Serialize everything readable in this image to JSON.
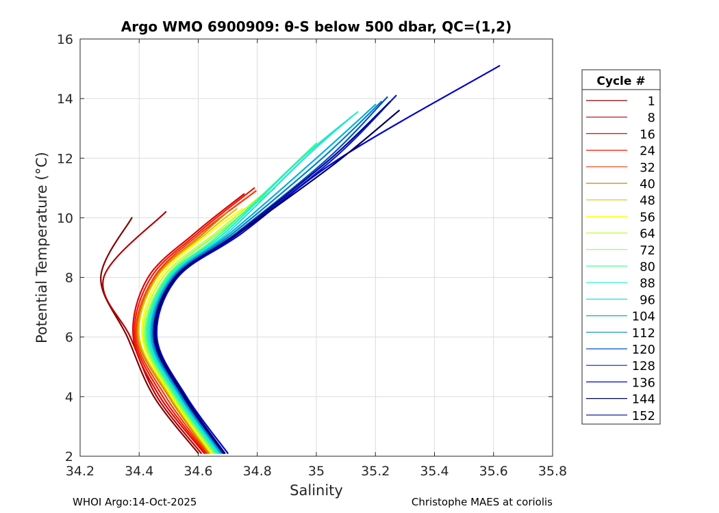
{
  "chart_data": {
    "type": "line",
    "title": "Argo WMO 6900909: θ-S below 500 dbar,  QC=(1,2)",
    "xlabel": "Salinity",
    "ylabel": "Potential Temperature (°C)",
    "xlim": [
      34.2,
      35.8
    ],
    "ylim": [
      2,
      16
    ],
    "xticks": [
      "34.2",
      "34.4",
      "34.6",
      "34.8",
      "35",
      "35.2",
      "35.4",
      "35.6",
      "35.8"
    ],
    "yticks": [
      "2",
      "4",
      "6",
      "8",
      "10",
      "12",
      "14",
      "16"
    ],
    "grid": true,
    "legend": {
      "title": "Cycle #",
      "placement": "outside-right",
      "entries": [
        {
          "label": "1",
          "color": "#800000"
        },
        {
          "label": "8",
          "color": "#b00000"
        },
        {
          "label": "16",
          "color": "#e00000"
        },
        {
          "label": "24",
          "color": "#f51500"
        },
        {
          "label": "32",
          "color": "#f53a00"
        },
        {
          "label": "40",
          "color": "#d08000"
        },
        {
          "label": "48",
          "color": "#e0c000"
        },
        {
          "label": "56",
          "color": "#ffff00"
        },
        {
          "label": "64",
          "color": "#c0ff30"
        },
        {
          "label": "72",
          "color": "#80ff60"
        },
        {
          "label": "80",
          "color": "#40ff90"
        },
        {
          "label": "88",
          "color": "#20f0c0"
        },
        {
          "label": "96",
          "color": "#20e0e0"
        },
        {
          "label": "104",
          "color": "#00b0e0"
        },
        {
          "label": "112",
          "color": "#0080c0"
        },
        {
          "label": "120",
          "color": "#0050c0"
        },
        {
          "label": "128",
          "color": "#0020c0"
        },
        {
          "label": "136",
          "color": "#0000d0"
        },
        {
          "label": "144",
          "color": "#000060"
        },
        {
          "label": "152",
          "color": "#000090"
        }
      ]
    },
    "series": [
      {
        "name": "1",
        "color": "#800000",
        "points": [
          [
            34.375,
            10.0
          ],
          [
            34.27,
            8.0
          ],
          [
            34.36,
            6.0
          ],
          [
            34.45,
            4.0
          ],
          [
            34.6,
            2.1
          ]
        ]
      },
      {
        "name": "8",
        "color": "#b00000",
        "points": [
          [
            34.49,
            10.2
          ],
          [
            34.28,
            8.0
          ],
          [
            34.37,
            6.0
          ],
          [
            34.46,
            4.0
          ],
          [
            34.61,
            2.1
          ]
        ]
      },
      {
        "name": "16",
        "color": "#e00000",
        "points": [
          [
            34.755,
            10.8
          ],
          [
            34.59,
            9.5
          ],
          [
            34.43,
            8.0
          ],
          [
            34.38,
            6.0
          ],
          [
            34.47,
            4.0
          ],
          [
            34.62,
            2.1
          ]
        ]
      },
      {
        "name": "24",
        "color": "#f51500",
        "points": [
          [
            34.79,
            11.0
          ],
          [
            34.6,
            9.5
          ],
          [
            34.44,
            8.0
          ],
          [
            34.385,
            6.0
          ],
          [
            34.48,
            4.0
          ],
          [
            34.625,
            2.1
          ]
        ]
      },
      {
        "name": "32",
        "color": "#f53a00",
        "points": [
          [
            34.795,
            10.9
          ],
          [
            34.61,
            9.5
          ],
          [
            34.45,
            8.0
          ],
          [
            34.39,
            6.0
          ],
          [
            34.49,
            4.0
          ],
          [
            34.63,
            2.1
          ]
        ]
      },
      {
        "name": "40",
        "color": "#d08000",
        "points": [
          [
            34.7,
            10.2
          ],
          [
            34.62,
            9.5
          ],
          [
            34.455,
            8.0
          ],
          [
            34.395,
            6.0
          ],
          [
            34.5,
            4.0
          ],
          [
            34.635,
            2.1
          ]
        ]
      },
      {
        "name": "48",
        "color": "#e0c000",
        "points": [
          [
            34.73,
            10.3
          ],
          [
            34.63,
            9.5
          ],
          [
            34.46,
            8.0
          ],
          [
            34.4,
            6.0
          ],
          [
            34.505,
            4.0
          ],
          [
            34.64,
            2.1
          ]
        ]
      },
      {
        "name": "56",
        "color": "#ffff00",
        "points": [
          [
            34.75,
            10.3
          ],
          [
            34.64,
            9.5
          ],
          [
            34.47,
            8.0
          ],
          [
            34.41,
            6.0
          ],
          [
            34.51,
            4.0
          ],
          [
            34.645,
            2.1
          ]
        ]
      },
      {
        "name": "64",
        "color": "#c0ff30",
        "points": [
          [
            34.82,
            10.8
          ],
          [
            34.66,
            9.5
          ],
          [
            34.48,
            8.0
          ],
          [
            34.415,
            6.0
          ],
          [
            34.515,
            4.0
          ],
          [
            34.65,
            2.1
          ]
        ]
      },
      {
        "name": "72",
        "color": "#80ff60",
        "points": [
          [
            34.86,
            11.0
          ],
          [
            34.67,
            9.5
          ],
          [
            34.49,
            8.0
          ],
          [
            34.42,
            6.0
          ],
          [
            34.52,
            4.0
          ],
          [
            34.655,
            2.1
          ]
        ]
      },
      {
        "name": "80",
        "color": "#40ff90",
        "points": [
          [
            35.0,
            12.5
          ],
          [
            34.68,
            9.5
          ],
          [
            34.495,
            8.0
          ],
          [
            34.425,
            6.0
          ],
          [
            34.525,
            4.0
          ],
          [
            34.66,
            2.1
          ]
        ]
      },
      {
        "name": "88",
        "color": "#20f0c0",
        "points": [
          [
            35.14,
            13.55
          ],
          [
            34.95,
            12.0
          ],
          [
            34.69,
            9.5
          ],
          [
            34.5,
            8.0
          ],
          [
            34.43,
            6.0
          ],
          [
            34.53,
            4.0
          ],
          [
            34.665,
            2.1
          ]
        ]
      },
      {
        "name": "96",
        "color": "#20e0e0",
        "points": [
          [
            35.12,
            13.4
          ],
          [
            34.96,
            12.0
          ],
          [
            34.7,
            9.5
          ],
          [
            34.505,
            8.0
          ],
          [
            34.435,
            6.0
          ],
          [
            34.535,
            4.0
          ],
          [
            34.67,
            2.1
          ]
        ]
      },
      {
        "name": "104",
        "color": "#00b0e0",
        "points": [
          [
            35.2,
            13.8
          ],
          [
            35.0,
            12.0
          ],
          [
            34.71,
            9.5
          ],
          [
            34.51,
            8.0
          ],
          [
            34.44,
            6.0
          ],
          [
            34.54,
            4.0
          ],
          [
            34.675,
            2.1
          ]
        ]
      },
      {
        "name": "112",
        "color": "#0080c0",
        "points": [
          [
            35.22,
            13.9
          ],
          [
            35.02,
            12.0
          ],
          [
            34.72,
            9.5
          ],
          [
            34.515,
            8.0
          ],
          [
            34.445,
            6.0
          ],
          [
            34.545,
            4.0
          ],
          [
            34.68,
            2.1
          ]
        ]
      },
      {
        "name": "120",
        "color": "#0050c0",
        "points": [
          [
            35.24,
            14.05
          ],
          [
            35.04,
            12.0
          ],
          [
            34.73,
            9.5
          ],
          [
            34.52,
            8.0
          ],
          [
            34.45,
            6.0
          ],
          [
            34.55,
            4.0
          ],
          [
            34.685,
            2.1
          ]
        ]
      },
      {
        "name": "128",
        "color": "#0020c0",
        "points": [
          [
            35.27,
            14.1
          ],
          [
            35.06,
            12.0
          ],
          [
            34.74,
            9.5
          ],
          [
            34.525,
            8.0
          ],
          [
            34.455,
            6.0
          ],
          [
            34.555,
            4.0
          ],
          [
            34.69,
            2.1
          ]
        ]
      },
      {
        "name": "136",
        "color": "#0000d0",
        "points": [
          [
            35.62,
            15.1
          ],
          [
            35.08,
            12.0
          ],
          [
            34.75,
            9.5
          ],
          [
            34.53,
            8.0
          ],
          [
            34.46,
            6.0
          ],
          [
            34.56,
            4.0
          ],
          [
            34.7,
            2.1
          ]
        ]
      },
      {
        "name": "144",
        "color": "#000060",
        "points": [
          [
            35.28,
            13.6
          ],
          [
            35.06,
            11.8
          ],
          [
            34.74,
            9.5
          ],
          [
            34.525,
            8.0
          ],
          [
            34.455,
            6.0
          ],
          [
            34.555,
            4.0
          ],
          [
            34.69,
            2.1
          ]
        ]
      },
      {
        "name": "152",
        "color": "#000090",
        "points": [
          [
            35.25,
            13.9
          ],
          [
            35.05,
            12.0
          ],
          [
            34.735,
            9.5
          ],
          [
            34.52,
            8.0
          ],
          [
            34.45,
            6.0
          ],
          [
            34.55,
            4.0
          ],
          [
            34.685,
            2.1
          ]
        ]
      }
    ]
  },
  "footer": {
    "left": "WHOI Argo:14-Oct-2025",
    "right": "Christophe MAES at coriolis"
  }
}
